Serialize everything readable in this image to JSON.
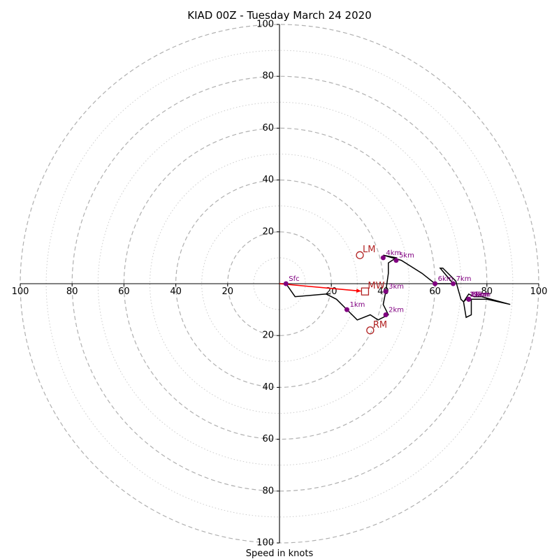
{
  "chart_data": {
    "type": "hodograph",
    "title": "KIAD 00Z - Tuesday March 24 2020",
    "xlabel": "Speed in knots",
    "range_knots": 100,
    "ring_step_knots": 10,
    "axis_ticks": {
      "right": [
        "20",
        "40",
        "60",
        "80",
        "100"
      ],
      "left": [
        "20",
        "40",
        "60",
        "80",
        "100"
      ],
      "up": [
        "20",
        "40",
        "60",
        "80",
        "100"
      ],
      "down": [
        "20",
        "40",
        "60",
        "80",
        "100"
      ]
    },
    "trace": [
      [
        0,
        0
      ],
      [
        2.5,
        0
      ],
      [
        6,
        -5
      ],
      [
        18,
        -4
      ],
      [
        22,
        -6
      ],
      [
        26,
        -10
      ],
      [
        30,
        -14
      ],
      [
        35,
        -12
      ],
      [
        38,
        -14
      ],
      [
        42,
        -12
      ],
      [
        40,
        -8
      ],
      [
        41,
        -3
      ],
      [
        42,
        4
      ],
      [
        42,
        8
      ],
      [
        45,
        10
      ],
      [
        40,
        11
      ],
      [
        47,
        9
      ],
      [
        55,
        4
      ],
      [
        60,
        0
      ],
      [
        61,
        0
      ],
      [
        67,
        0
      ],
      [
        62,
        6
      ],
      [
        63,
        6
      ],
      [
        68,
        1
      ],
      [
        70,
        -6
      ],
      [
        71,
        -7
      ],
      [
        73,
        -4
      ],
      [
        75,
        -5
      ],
      [
        78,
        -5
      ],
      [
        89,
        -8
      ],
      [
        80,
        -6
      ],
      [
        74,
        -6
      ],
      [
        74,
        -12
      ],
      [
        72,
        -13
      ],
      [
        71,
        -7
      ],
      [
        72,
        -6
      ]
    ],
    "height_markers": [
      {
        "label": "Sfc",
        "u": 2.5,
        "v": 0
      },
      {
        "label": "1km",
        "u": 26,
        "v": -10
      },
      {
        "label": "2km",
        "u": 41,
        "v": -12
      },
      {
        "label": "3km",
        "u": 41,
        "v": -3
      },
      {
        "label": "4km",
        "u": 40,
        "v": 10
      },
      {
        "label": "5km",
        "u": 45,
        "v": 9
      },
      {
        "label": "6km",
        "u": 60,
        "v": 0
      },
      {
        "label": "7km",
        "u": 67,
        "v": 0
      },
      {
        "label": "8km",
        "u": 73,
        "v": -6
      },
      {
        "label": "9km",
        "u": 73,
        "v": -6
      },
      {
        "label": "10km",
        "u": 73,
        "v": -6
      },
      {
        "label": "11km",
        "u": 73,
        "v": -6
      }
    ],
    "storm_motions": [
      {
        "label": "LM",
        "u": 31,
        "v": 11,
        "marker": "circle"
      },
      {
        "label": "RM",
        "u": 35,
        "v": -18,
        "marker": "circle"
      },
      {
        "label": "MW",
        "u": 33,
        "v": -3,
        "marker": "square"
      }
    ],
    "shear_vector": {
      "from": [
        0,
        0
      ],
      "to": [
        33,
        -3
      ]
    },
    "colors": {
      "trace": "#000000",
      "markers": "#800080",
      "storm": "#b22222",
      "shear": "#ff0000",
      "ring_major": "#b0b0b0",
      "ring_minor": "#cccccc"
    }
  }
}
